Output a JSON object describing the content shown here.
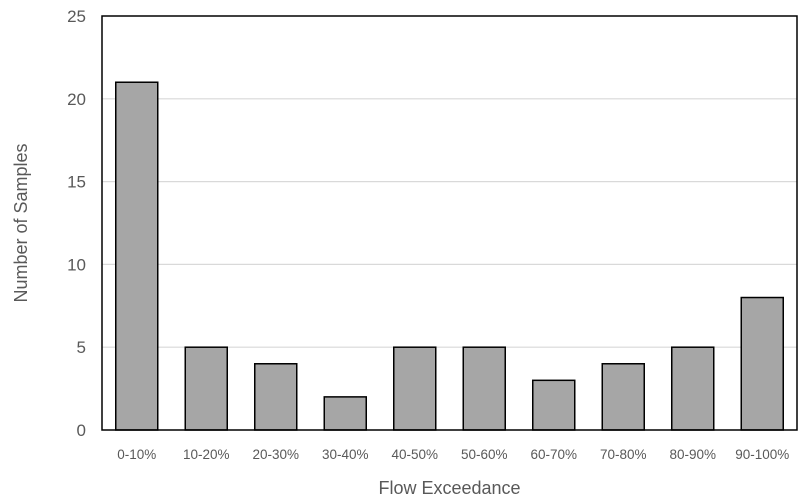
{
  "chart_data": {
    "type": "bar",
    "categories": [
      "0-10%",
      "10-20%",
      "20-30%",
      "30-40%",
      "40-50%",
      "50-60%",
      "60-70%",
      "70-80%",
      "80-90%",
      "90-100%"
    ],
    "values": [
      21,
      5,
      4,
      2,
      5,
      5,
      3,
      4,
      5,
      8
    ],
    "title": "",
    "xlabel": "Flow Exceedance",
    "ylabel": "Number of Samples",
    "ylim": [
      0,
      25
    ],
    "yticks": [
      0,
      5,
      10,
      15,
      20,
      25
    ],
    "grid": true,
    "legend": "none",
    "colors": {
      "bar_fill": "#a6a6a6",
      "bar_stroke": "#000000",
      "gridline": "#d9d9d9",
      "frame": "#000000",
      "text": "#595959"
    }
  }
}
